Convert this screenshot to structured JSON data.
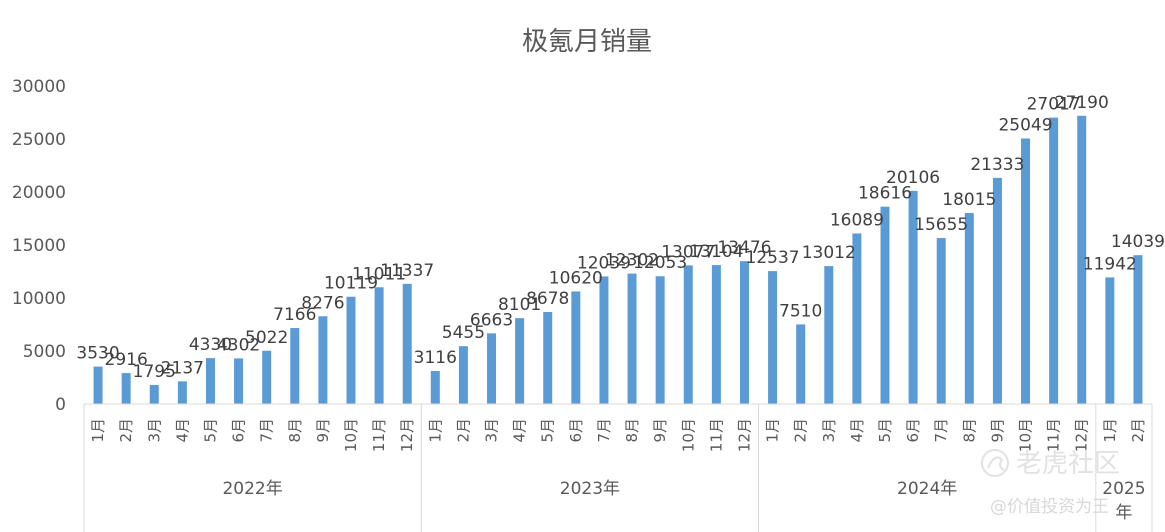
{
  "chart_data": {
    "type": "bar",
    "title": "极氪月销量",
    "ylim": [
      0,
      30000
    ],
    "yticks": [
      0,
      5000,
      10000,
      15000,
      20000,
      25000,
      30000
    ],
    "grid": false,
    "legend": "none",
    "bar_color": "#5B9BD5",
    "groups": [
      {
        "label": "2022年",
        "months": [
          "1月",
          "2月",
          "3月",
          "4月",
          "5月",
          "6月",
          "7月",
          "8月",
          "9月",
          "10月",
          "11月",
          "12月"
        ],
        "values": [
          3530,
          2916,
          1795,
          2137,
          4330,
          4302,
          5022,
          7166,
          8276,
          10119,
          11011,
          11337
        ]
      },
      {
        "label": "2023年",
        "months": [
          "1月",
          "2月",
          "3月",
          "4月",
          "5月",
          "6月",
          "7月",
          "8月",
          "9月",
          "10月",
          "11月",
          "12月"
        ],
        "values": [
          3116,
          5455,
          6663,
          8101,
          8678,
          10620,
          12039,
          12302,
          12053,
          13077,
          13104,
          13476
        ]
      },
      {
        "label": "2024年",
        "months": [
          "1月",
          "2月",
          "3月",
          "4月",
          "5月",
          "6月",
          "7月",
          "8月",
          "9月",
          "10月",
          "11月",
          "12月"
        ],
        "values": [
          12537,
          7510,
          13012,
          16089,
          18616,
          20106,
          15655,
          18015,
          21333,
          25049,
          27017,
          27190
        ]
      },
      {
        "label": "2025\n年",
        "months": [
          "1月",
          "2月"
        ],
        "values": [
          11942,
          14039
        ]
      }
    ]
  },
  "watermark": {
    "brand": "老虎社区",
    "handle": "@价值投资为王",
    "icon": "tiger-logo-icon"
  }
}
